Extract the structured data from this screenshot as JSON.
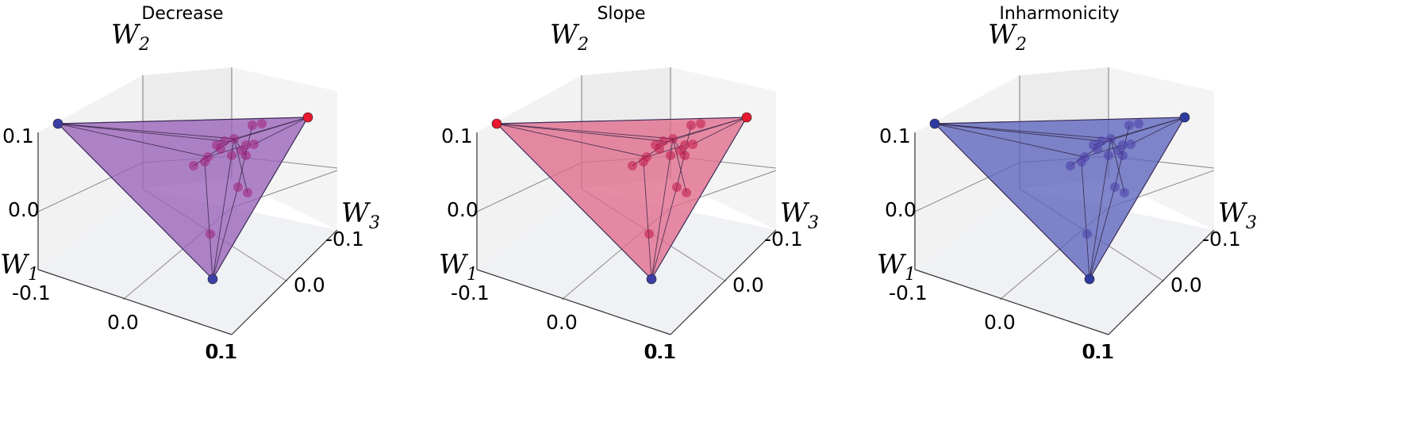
{
  "chart_data": [
    {
      "type": "scatter",
      "title": "Decrease",
      "axes": [
        {
          "letter": "W",
          "sub": "1",
          "ticks": [
            "-0.1",
            "0.0",
            "0.1"
          ]
        },
        {
          "letter": "W",
          "sub": "2",
          "ticks": [
            "0.0",
            "0.1"
          ]
        },
        {
          "letter": "W",
          "sub": "3",
          "ticks": [
            "-0.1",
            "0.0",
            "0.1"
          ]
        }
      ],
      "hull_color": "#9a62b8",
      "vertex_colors": [
        "#3d3fa6",
        "#e8182e",
        "#3d3fa6"
      ],
      "interior_point_color": "#a0207a",
      "grid": true
    },
    {
      "type": "scatter",
      "title": "Slope",
      "axes": [
        {
          "letter": "W",
          "sub": "1",
          "ticks": [
            "-0.1",
            "0.0",
            "0.1"
          ]
        },
        {
          "letter": "W",
          "sub": "2",
          "ticks": [
            "0.0",
            "0.1"
          ]
        },
        {
          "letter": "W",
          "sub": "3",
          "ticks": [
            "-0.1",
            "0.0",
            "0.1"
          ]
        }
      ],
      "hull_color": "#e06a8c",
      "vertex_colors": [
        "#e8182e",
        "#e8182e",
        "#3d3fa6"
      ],
      "interior_point_color": "#c0184a",
      "grid": true
    },
    {
      "type": "scatter",
      "title": "Inharmonicity",
      "axes": [
        {
          "letter": "W",
          "sub": "1",
          "ticks": [
            "-0.1",
            "0.0",
            "0.1"
          ]
        },
        {
          "letter": "W",
          "sub": "2",
          "ticks": [
            "0.0",
            "0.1"
          ]
        },
        {
          "letter": "W",
          "sub": "3",
          "ticks": [
            "-0.1",
            "0.0",
            "0.1"
          ]
        }
      ],
      "hull_color": "#5b64bc",
      "vertex_colors": [
        "#2f3aa0",
        "#2f3aa0",
        "#2f3aa0"
      ],
      "interior_point_color": "#4a3ea8",
      "grid": true
    }
  ]
}
